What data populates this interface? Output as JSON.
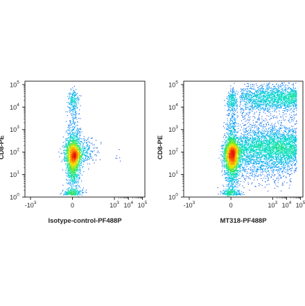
{
  "chart_data": [
    {
      "type": "scatter",
      "style": "pseudocolor density (blue to red)",
      "title": "",
      "xlabel": "Isotype-control-PF488P",
      "ylabel": "CD8-PE",
      "x_scale": "biexponential",
      "y_scale": "biexponential",
      "x_ticks": [
        {
          "value": -1000,
          "base": "-10",
          "exp": "3"
        },
        {
          "value": 0,
          "base": "0",
          "exp": ""
        },
        {
          "value": 1000,
          "base": "10",
          "exp": "3"
        },
        {
          "value": 10000,
          "base": "10",
          "exp": "4"
        },
        {
          "value": 100000,
          "base": "10",
          "exp": "5"
        }
      ],
      "y_ticks": [
        {
          "value": 1,
          "base": "10",
          "exp": "0"
        },
        {
          "value": 10,
          "base": "10",
          "exp": "1"
        },
        {
          "value": 100,
          "base": "10",
          "exp": "2"
        },
        {
          "value": 1000,
          "base": "10",
          "exp": "3"
        },
        {
          "value": 10000,
          "base": "10",
          "exp": "4"
        },
        {
          "value": 100000,
          "base": "10",
          "exp": "5"
        }
      ],
      "populations": [
        {
          "description": "main CD8 stripe near x=0",
          "x_center": 0,
          "y_range": [
            1,
            40000
          ],
          "density_peak_y": 80
        },
        {
          "description": "small shoulder",
          "x_center": 300,
          "y_range": [
            30,
            300
          ]
        }
      ],
      "grid": false
    },
    {
      "type": "scatter",
      "style": "pseudocolor density (blue to red)",
      "title": "",
      "xlabel": "MT318-PF488P",
      "ylabel": "CD8-PE",
      "x_scale": "biexponential",
      "y_scale": "biexponential",
      "x_ticks": [
        {
          "value": -1000,
          "base": "-10",
          "exp": "3"
        },
        {
          "value": 0,
          "base": "0",
          "exp": ""
        },
        {
          "value": 1000,
          "base": "10",
          "exp": "3"
        },
        {
          "value": 10000,
          "base": "10",
          "exp": "4"
        },
        {
          "value": 100000,
          "base": "10",
          "exp": "5"
        }
      ],
      "y_ticks": [
        {
          "value": 1,
          "base": "10",
          "exp": "0"
        },
        {
          "value": 10,
          "base": "10",
          "exp": "1"
        },
        {
          "value": 100,
          "base": "10",
          "exp": "2"
        },
        {
          "value": 1000,
          "base": "10",
          "exp": "3"
        },
        {
          "value": 10000,
          "base": "10",
          "exp": "4"
        },
        {
          "value": 100000,
          "base": "10",
          "exp": "5"
        }
      ],
      "populations": [
        {
          "description": "main CD8 stripe near x=0",
          "x_center": 0,
          "y_range": [
            1,
            40000
          ],
          "density_peak_y": 80
        },
        {
          "description": "positive population, mid CD8",
          "x_range": [
            1000,
            60000
          ],
          "y_range": [
            40,
            800
          ]
        },
        {
          "description": "positive population, high CD8",
          "x_range": [
            1000,
            60000
          ],
          "y_range": [
            10000,
            60000
          ]
        }
      ],
      "grid": false
    }
  ]
}
